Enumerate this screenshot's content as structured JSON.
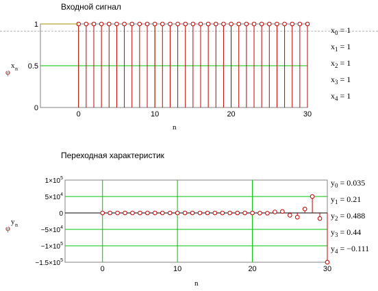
{
  "panels": [
    {
      "title": "Входной сигнал",
      "y_label": {
        "base": "x",
        "sub": "n"
      },
      "x_label": "n",
      "readouts": [
        {
          "base": "x",
          "sub": "0",
          "value": "= 1"
        },
        {
          "base": "x",
          "sub": "1",
          "value": "= 1"
        },
        {
          "base": "x",
          "sub": "2",
          "value": "= 1"
        },
        {
          "base": "x",
          "sub": "3",
          "value": "= 1"
        },
        {
          "base": "x",
          "sub": "4",
          "value": "= 1"
        }
      ]
    },
    {
      "title": "Переходная характеристик",
      "y_label": {
        "base": "y",
        "sub": "n"
      },
      "x_label": "n",
      "readouts": [
        {
          "base": "y",
          "sub": "0",
          "value": "= 0.035"
        },
        {
          "base": "y",
          "sub": "1",
          "value": "= 0.21"
        },
        {
          "base": "y",
          "sub": "2",
          "value": "= 0.488"
        },
        {
          "base": "y",
          "sub": "3",
          "value": "= 0.44"
        },
        {
          "base": "y",
          "sub": "4",
          "value": "= −0.111"
        }
      ]
    }
  ],
  "colors": {
    "stem": "#c00000",
    "grid": "#00c000",
    "axis": "#000000",
    "readout_text": "#000000"
  },
  "chart_data": [
    {
      "type": "scatter",
      "style": "stem",
      "title": "Входной сигнал",
      "xlabel": "n",
      "ylabel": "xn",
      "xlim": [
        -5,
        30
      ],
      "ylim": [
        0,
        1
      ],
      "x_ticks": [
        "0",
        "10",
        "20",
        "30"
      ],
      "y_ticks": [
        "0",
        "0.5",
        "1"
      ],
      "grid": true,
      "x": [
        0,
        1,
        2,
        3,
        4,
        5,
        6,
        7,
        8,
        9,
        10,
        11,
        12,
        13,
        14,
        15,
        16,
        17,
        18,
        19,
        20,
        21,
        22,
        23,
        24,
        25,
        26,
        27,
        28,
        29,
        30
      ],
      "y": [
        1,
        1,
        1,
        1,
        1,
        1,
        1,
        1,
        1,
        1,
        1,
        1,
        1,
        1,
        1,
        1,
        1,
        1,
        1,
        1,
        1,
        1,
        1,
        1,
        1,
        1,
        1,
        1,
        1,
        1,
        1
      ]
    },
    {
      "type": "scatter",
      "style": "stem",
      "title": "Переходная характеристик",
      "xlabel": "n",
      "ylabel": "yn",
      "xlim": [
        -5,
        30
      ],
      "ylim": [
        -150000,
        100000
      ],
      "x_ticks": [
        "0",
        "10",
        "20",
        "30"
      ],
      "y_ticks": [
        {
          "mant": "1×10",
          "exp": "5",
          "value": 100000
        },
        {
          "mant": "5×10",
          "exp": "4",
          "value": 50000
        },
        {
          "mant": "0",
          "exp": "",
          "value": 0
        },
        {
          "mant": "−5×10",
          "exp": "4",
          "value": -50000
        },
        {
          "mant": "−1×10",
          "exp": "5",
          "value": -100000
        },
        {
          "mant": "−1.5×10",
          "exp": "5",
          "value": -150000
        }
      ],
      "grid": true,
      "x": [
        0,
        1,
        2,
        3,
        4,
        5,
        6,
        7,
        8,
        9,
        10,
        11,
        12,
        13,
        14,
        15,
        16,
        17,
        18,
        19,
        20,
        21,
        22,
        23,
        24,
        25,
        26,
        27,
        28,
        29,
        30
      ],
      "y": [
        0.035,
        0.21,
        0.488,
        0.44,
        -0.111,
        0,
        0,
        0,
        0,
        0,
        0,
        0,
        0,
        0,
        0,
        0,
        0,
        0,
        0,
        0,
        0,
        -500,
        -800,
        3000,
        4500,
        -7000,
        -13000,
        12000,
        50000,
        -17000,
        -150000
      ]
    }
  ]
}
